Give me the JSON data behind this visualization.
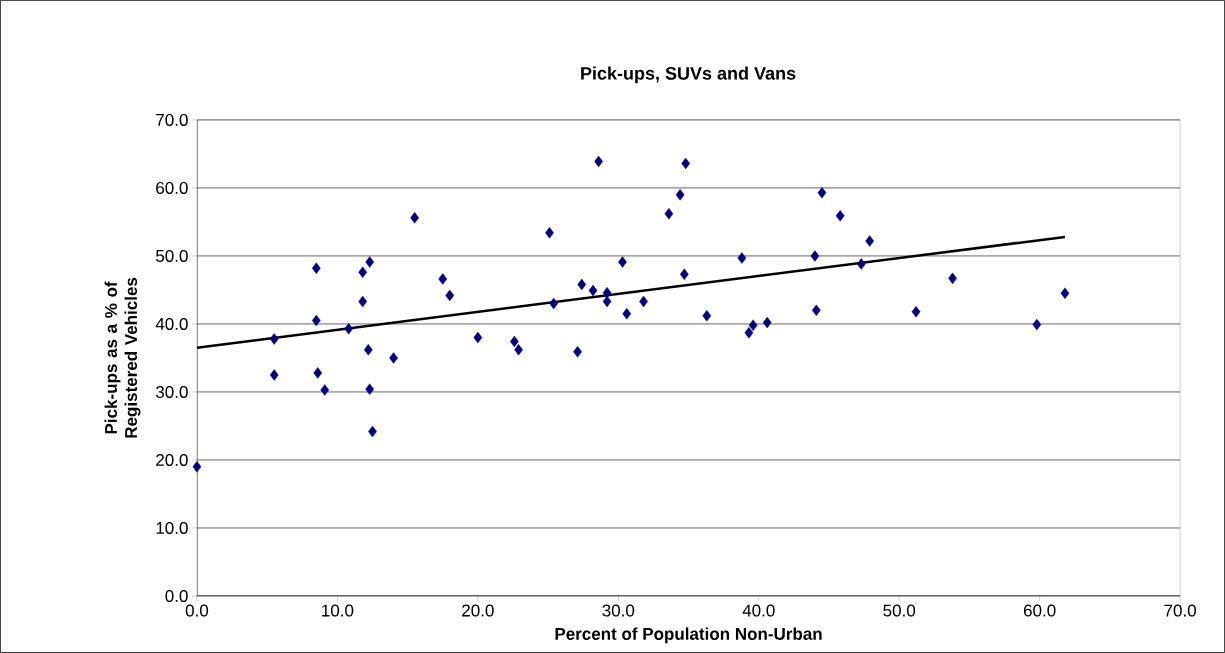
{
  "chart_data": {
    "type": "scatter",
    "title": "Pick-ups, SUVs and Vans",
    "xlabel": "Percent of Population Non-Urban",
    "ylabel": "Pick-ups as a % of Registered Vehicles",
    "xlim": [
      0,
      70
    ],
    "ylim": [
      0,
      70
    ],
    "xticks": [
      {
        "value": 0,
        "label": "0.0"
      },
      {
        "value": 10,
        "label": "10.0"
      },
      {
        "value": 20,
        "label": "20.0"
      },
      {
        "value": 30,
        "label": "30.0"
      },
      {
        "value": 40,
        "label": "40.0"
      },
      {
        "value": 50,
        "label": "50.0"
      },
      {
        "value": 60,
        "label": "60.0"
      },
      {
        "value": 70,
        "label": "70.0"
      }
    ],
    "yticks": [
      {
        "value": 0,
        "label": "0.0"
      },
      {
        "value": 10,
        "label": "10.0"
      },
      {
        "value": 20,
        "label": "20.0"
      },
      {
        "value": 30,
        "label": "30.0"
      },
      {
        "value": 40,
        "label": "40.0"
      },
      {
        "value": 50,
        "label": "50.0"
      },
      {
        "value": 60,
        "label": "60.0"
      },
      {
        "value": 70,
        "label": "70.0"
      }
    ],
    "grid": "y",
    "series": [
      {
        "marker": "diamond",
        "color": "#000080",
        "x": [
          0,
          5.5,
          5.5,
          8.5,
          8.5,
          8.6,
          9.1,
          10.8,
          11.8,
          11.8,
          12.2,
          12.3,
          12.3,
          12.5,
          14,
          15.5,
          17.5,
          18,
          20,
          22.6,
          22.9,
          25.1,
          25.4,
          27.1,
          27.4,
          28.2,
          28.6,
          29.2,
          29.2,
          30.3,
          30.6,
          31.8,
          33.6,
          34.4,
          34.7,
          34.8,
          36.3,
          38.8,
          39.3,
          39.6,
          40.6,
          44,
          44.1,
          44.5,
          45.8,
          47.3,
          47.9,
          51.2,
          53.8,
          59.8,
          61.8
        ],
        "values": [
          19,
          37.8,
          32.5,
          48.2,
          40.5,
          32.8,
          30.3,
          39.3,
          47.6,
          43.3,
          36.2,
          49.1,
          30.4,
          24.2,
          35,
          55.6,
          46.6,
          44.2,
          38,
          37.4,
          36.2,
          53.4,
          43,
          35.9,
          45.8,
          44.9,
          63.9,
          44.6,
          43.3,
          49.1,
          41.5,
          43.3,
          56.2,
          59,
          47.3,
          63.6,
          41.2,
          49.7,
          38.7,
          39.8,
          40.2,
          50,
          42,
          59.3,
          55.9,
          48.8,
          52.2,
          41.8,
          46.7,
          39.9,
          44.5
        ]
      },
      {
        "type": "line",
        "marker": "none",
        "line_style": "solid",
        "color": "#000000",
        "x": [
          0,
          61.8
        ],
        "values": [
          36.5,
          52.8
        ]
      }
    ]
  }
}
